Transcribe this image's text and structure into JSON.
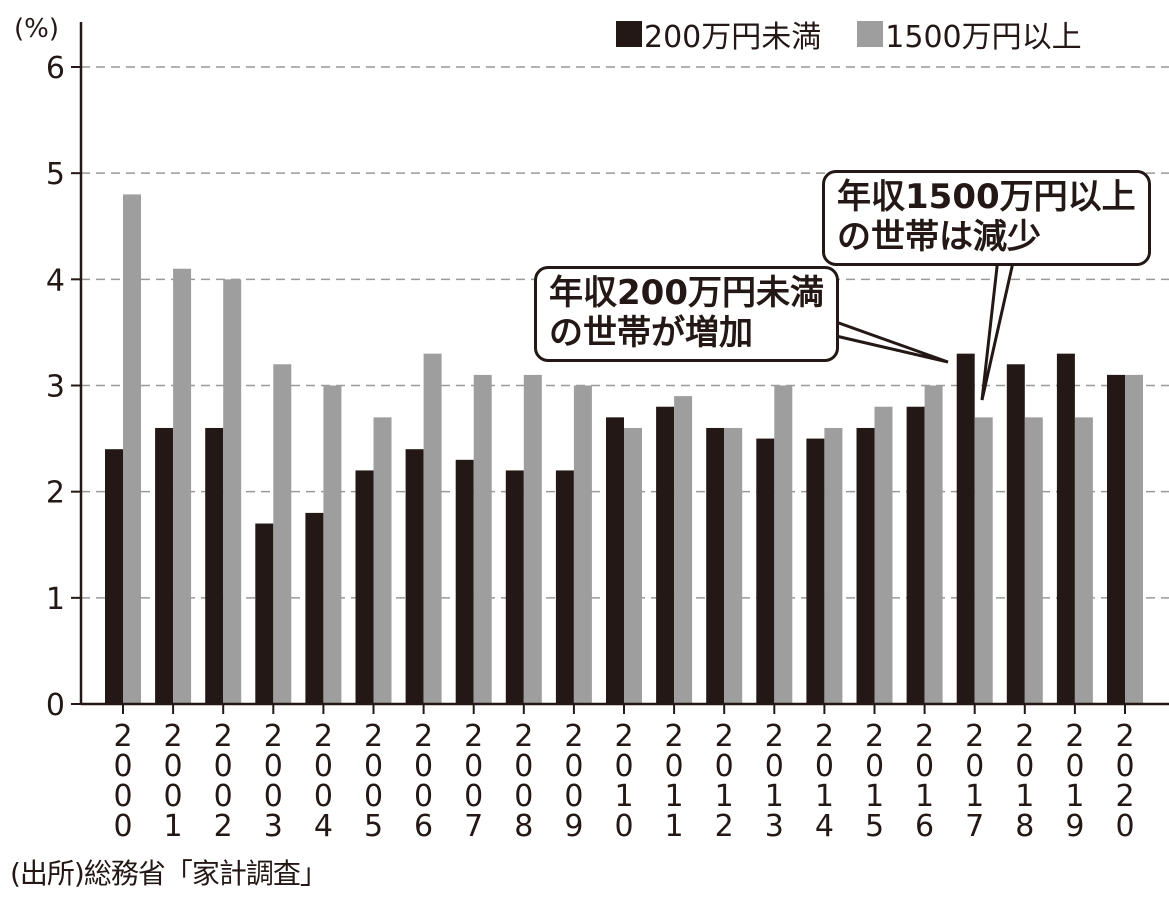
{
  "unit_label": "(%)",
  "legend": [
    {
      "label": "200万円未満",
      "color": "#231815"
    },
    {
      "label": "1500万円以上",
      "color": "#9e9e9f"
    }
  ],
  "callouts": {
    "low_income": {
      "lines": [
        "年収200万円未満",
        "の世帯が増加"
      ]
    },
    "high_income": {
      "lines": [
        "年収1500万円以上",
        "の世帯は減少"
      ]
    }
  },
  "source": "(出所)総務省「家計調査」",
  "chart_data": {
    "type": "bar",
    "categories": [
      "2000",
      "2001",
      "2002",
      "2003",
      "2004",
      "2005",
      "2006",
      "2007",
      "2008",
      "2009",
      "2010",
      "2011",
      "2012",
      "2013",
      "2014",
      "2015",
      "2016",
      "2017",
      "2018",
      "2019",
      "2020"
    ],
    "series": [
      {
        "name": "200万円未満",
        "color": "#231815",
        "values": [
          2.4,
          2.6,
          2.6,
          1.7,
          1.8,
          2.2,
          2.4,
          2.3,
          2.2,
          2.2,
          2.7,
          2.8,
          2.6,
          2.5,
          2.5,
          2.6,
          2.8,
          3.3,
          3.2,
          3.3,
          3.1
        ]
      },
      {
        "name": "1500万円以上",
        "color": "#9e9e9f",
        "values": [
          4.8,
          4.1,
          4.0,
          3.2,
          3.0,
          2.7,
          3.3,
          3.1,
          3.1,
          3.0,
          2.6,
          2.9,
          2.6,
          3.0,
          2.6,
          2.8,
          3.0,
          2.7,
          2.7,
          2.7,
          3.1
        ]
      }
    ],
    "ylim": [
      0,
      6
    ],
    "yticks": [
      0,
      1,
      2,
      3,
      4,
      5,
      6
    ],
    "ylabel": "(%)",
    "xlabel": "",
    "grid": "horizontal dashed"
  }
}
